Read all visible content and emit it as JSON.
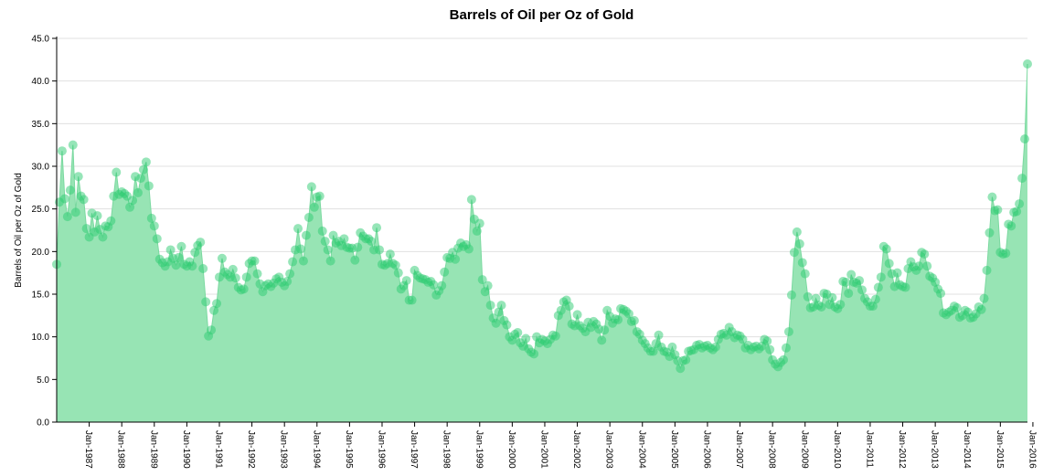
{
  "chart_data": {
    "type": "area",
    "title": "Barrels of Oil per Oz of Gold",
    "xlabel": "",
    "ylabel": "Barrels of Oil per Oz of Gold",
    "ylim": [
      0,
      45
    ],
    "xlim": [
      "1986-01",
      "2016-02"
    ],
    "grid": true,
    "area_color": "#2ecc71",
    "y_ticks": [
      "0.0",
      "5.0",
      "10.0",
      "15.0",
      "20.0",
      "25.0",
      "30.0",
      "35.0",
      "40.0",
      "45.0"
    ],
    "x_ticks": [
      "Jan-1987",
      "Jan-1988",
      "Jan-1989",
      "Jan-1990",
      "Jan-1991",
      "Jan-1992",
      "Jan-1993",
      "Jan-1994",
      "Jan-1995",
      "Jan-1996",
      "Jan-1997",
      "Jan-1998",
      "Jan-1999",
      "Jan-2000",
      "Jan-2001",
      "Jan-2002",
      "Jan-2003",
      "Jan-2004",
      "Jan-2005",
      "Jan-2006",
      "Jan-2007",
      "Jan-2008",
      "Jan-2009",
      "Jan-2010",
      "Jan-2011",
      "Jan-2012",
      "Jan-2013",
      "Jan-2014",
      "Jan-2015",
      "Jan-2016"
    ],
    "x_start": "1986-01",
    "x_step": "1 month",
    "values": [
      18.5,
      25.8,
      31.8,
      26.2,
      24.1,
      27.2,
      32.5,
      24.6,
      28.8,
      26.5,
      26.1,
      22.7,
      21.7,
      24.5,
      22.3,
      24.2,
      22.6,
      21.7,
      23.0,
      22.9,
      23.6,
      26.5,
      29.3,
      26.7,
      27.0,
      26.8,
      26.5,
      25.2,
      26.0,
      28.8,
      26.9,
      28.6,
      29.6,
      30.5,
      27.7,
      23.9,
      23.0,
      21.5,
      19.1,
      18.7,
      18.3,
      18.8,
      20.2,
      19.2,
      18.4,
      19.3,
      20.6,
      18.5,
      18.3,
      18.8,
      18.3,
      19.9,
      20.7,
      21.1,
      18.0,
      14.1,
      10.1,
      10.8,
      13.1,
      13.9,
      17.0,
      19.2,
      17.6,
      17.3,
      17.0,
      17.9,
      16.9,
      15.8,
      15.5,
      15.6,
      17.0,
      18.6,
      18.9,
      18.9,
      17.4,
      16.2,
      15.3,
      16.0,
      16.2,
      15.9,
      16.3,
      16.8,
      17.0,
      16.4,
      16.0,
      16.5,
      17.4,
      18.8,
      20.2,
      22.7,
      20.3,
      18.9,
      21.9,
      24.0,
      27.6,
      25.2,
      26.4,
      26.5,
      22.4,
      21.2,
      20.2,
      18.9,
      21.9,
      21.0,
      21.2,
      20.7,
      21.5,
      20.5,
      20.4,
      20.4,
      19.0,
      20.5,
      22.2,
      21.8,
      21.5,
      21.5,
      21.2,
      20.2,
      22.8,
      20.2,
      18.5,
      18.4,
      18.6,
      19.7,
      18.6,
      18.4,
      17.5,
      15.6,
      16.0,
      16.6,
      14.3,
      14.3,
      17.8,
      17.2,
      16.9,
      16.8,
      16.7,
      16.4,
      16.5,
      16.1,
      14.9,
      15.4,
      16.0,
      17.6,
      19.3,
      19.2,
      19.9,
      19.1,
      20.4,
      21.0,
      20.6,
      20.8,
      20.3,
      26.1,
      23.8,
      22.4,
      23.3,
      16.7,
      15.3,
      16.0,
      13.7,
      12.2,
      11.6,
      12.9,
      13.7,
      11.9,
      11.4,
      10.0,
      9.6,
      10.3,
      10.5,
      9.3,
      8.9,
      9.8,
      8.6,
      8.2,
      8.0,
      10.0,
      9.3,
      9.7,
      9.5,
      9.2,
      9.7,
      10.2,
      10.1,
      12.5,
      13.1,
      14.1,
      14.3,
      13.6,
      11.5,
      11.3,
      12.6,
      11.3,
      11.0,
      10.6,
      11.7,
      11.1,
      11.8,
      11.5,
      10.9,
      9.6,
      10.8,
      13.1,
      12.4,
      11.6,
      12.1,
      12.0,
      13.3,
      13.2,
      13.0,
      12.7,
      11.8,
      11.9,
      10.6,
      10.3,
      9.6,
      9.2,
      8.7,
      8.3,
      8.3,
      9.2,
      10.2,
      8.8,
      8.3,
      8.2,
      7.7,
      8.8,
      7.9,
      7.2,
      6.3,
      7.2,
      7.3,
      8.3,
      8.4,
      8.5,
      9.0,
      9.1,
      8.7,
      8.9,
      9.0,
      8.7,
      8.5,
      8.8,
      9.7,
      10.3,
      10.4,
      10.2,
      11.1,
      10.6,
      9.9,
      10.2,
      10.1,
      9.7,
      8.7,
      9.0,
      8.5,
      8.8,
      8.9,
      8.6,
      8.9,
      9.7,
      9.5,
      8.5,
      7.3,
      6.8,
      6.5,
      7.0,
      7.3,
      8.7,
      10.6,
      14.9,
      19.9,
      22.3,
      20.9,
      18.7,
      17.4,
      14.7,
      13.4,
      13.5,
      14.5,
      13.7,
      13.5,
      15.1,
      15.0,
      13.8,
      14.6,
      13.5,
      13.3,
      13.8,
      16.5,
      16.4,
      15.1,
      17.3,
      16.4,
      16.3,
      16.6,
      15.5,
      14.5,
      14.1,
      13.6,
      13.6,
      14.4,
      15.8,
      17.0,
      20.6,
      20.3,
      18.6,
      17.4,
      15.9,
      17.5,
      16.1,
      15.9,
      15.8,
      18.0,
      18.8,
      18.2,
      17.8,
      18.3,
      19.9,
      19.7,
      18.3,
      17.1,
      16.9,
      16.4,
      15.6,
      15.1,
      12.8,
      12.6,
      12.9,
      13.1,
      13.6,
      13.4,
      12.3,
      12.5,
      13.1,
      12.9,
      12.2,
      12.3,
      12.7,
      13.5,
      13.2,
      14.5,
      17.8,
      22.2,
      26.4,
      24.8,
      24.9,
      19.9,
      19.7,
      19.8,
      23.2,
      23.0,
      24.6,
      24.7,
      25.6,
      28.6,
      33.2,
      42.0
    ]
  }
}
